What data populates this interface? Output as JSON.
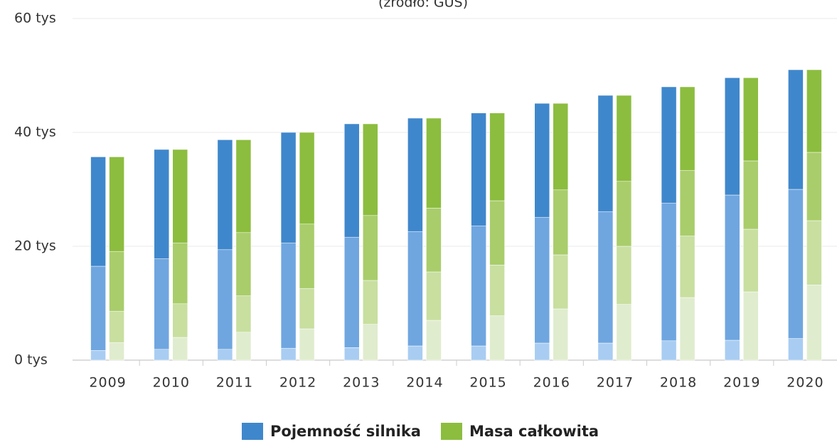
{
  "chart_data": {
    "type": "stacked-bar-groups",
    "subtitle": "(źródło: GUS)",
    "categories": [
      "2009",
      "2010",
      "2011",
      "2012",
      "2013",
      "2014",
      "2015",
      "2016",
      "2017",
      "2018",
      "2019",
      "2020"
    ],
    "ylim": [
      0,
      60
    ],
    "yticks": [
      {
        "value": 0,
        "label": "0 tys"
      },
      {
        "value": 20,
        "label": "20 tys"
      },
      {
        "value": 40,
        "label": "40 tys"
      },
      {
        "value": 60,
        "label": "60 tys"
      }
    ],
    "grid": true,
    "legend": "bottom",
    "series": [
      {
        "name": "Pojemność silnika",
        "color": "#3f87cc",
        "segments": [
          {
            "color": "#a9cdf2",
            "values": [
              1.7,
              1.9,
              1.9,
              2.1,
              2.2,
              2.5,
              2.5,
              3.0,
              3.0,
              3.4,
              3.5,
              3.8
            ]
          },
          {
            "color": "#6fa6e0",
            "values": [
              14.8,
              15.9,
              17.5,
              18.5,
              19.4,
              20.1,
              21.1,
              22.1,
              23.1,
              24.2,
              25.5,
              26.2
            ]
          },
          {
            "color": "#3f87cc",
            "values": [
              19.2,
              19.2,
              19.3,
              19.4,
              19.9,
              19.9,
              19.8,
              20.0,
              20.4,
              20.4,
              20.6,
              21.0
            ]
          }
        ]
      },
      {
        "name": "Masa całkowita",
        "color": "#8cbd3f",
        "segments": [
          {
            "color": "#e0ecce",
            "values": [
              3.1,
              4.0,
              4.9,
              5.5,
              6.3,
              7.0,
              7.8,
              9.0,
              9.8,
              11.0,
              12.0,
              13.2
            ]
          },
          {
            "color": "#c8dfa0",
            "values": [
              5.5,
              5.9,
              6.4,
              7.1,
              7.7,
              8.5,
              8.9,
              9.5,
              10.2,
              10.8,
              11.0,
              11.3
            ]
          },
          {
            "color": "#a9cd6b",
            "values": [
              10.5,
              10.7,
              11.1,
              11.3,
              11.4,
              11.2,
              11.3,
              11.4,
              11.4,
              11.5,
              12.0,
              12.0
            ]
          },
          {
            "color": "#8cbd3f",
            "values": [
              16.6,
              16.4,
              16.3,
              16.1,
              16.1,
              15.8,
              15.4,
              15.2,
              15.1,
              14.7,
              14.6,
              14.5
            ]
          }
        ]
      }
    ]
  }
}
